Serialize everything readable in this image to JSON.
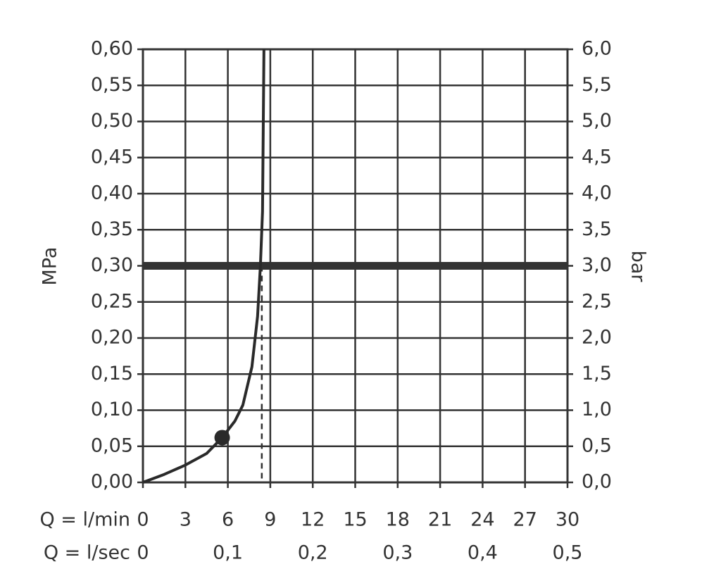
{
  "chart_data": {
    "type": "line",
    "y_label": "MPa",
    "y2_label": "bar",
    "x_label": "Q = l/min",
    "x2_label": "Q = l/sec",
    "xlim": [
      0,
      30
    ],
    "xticks": [
      0,
      3,
      6,
      9,
      12,
      15,
      18,
      21,
      24,
      27,
      30
    ],
    "x2lim": [
      0,
      0.5
    ],
    "x2ticks": [
      0,
      {
        "value": 0.1,
        "label": "0,1"
      },
      {
        "value": 0.2,
        "label": "0,2"
      },
      {
        "value": 0.3,
        "label": "0,3"
      },
      {
        "value": 0.4,
        "label": "0,4"
      },
      {
        "value": 0.5,
        "label": "0,5"
      }
    ],
    "ylim": [
      0,
      0.6
    ],
    "yticks": [
      {
        "value": 0,
        "label": "0,00"
      },
      {
        "value": 0.05,
        "label": "0,05"
      },
      {
        "value": 0.1,
        "label": "0,10"
      },
      {
        "value": 0.15,
        "label": "0,15"
      },
      {
        "value": 0.2,
        "label": "0,20"
      },
      {
        "value": 0.25,
        "label": "0,25"
      },
      {
        "value": 0.3,
        "label": "0,30"
      },
      {
        "value": 0.35,
        "label": "0,35"
      },
      {
        "value": 0.4,
        "label": "0,40"
      },
      {
        "value": 0.45,
        "label": "0,45"
      },
      {
        "value": 0.5,
        "label": "0,50"
      },
      {
        "value": 0.55,
        "label": "0,55"
      },
      {
        "value": 0.6,
        "label": "0,60"
      }
    ],
    "y2lim": [
      0,
      6
    ],
    "y2ticks": [
      {
        "value": 0,
        "label": "0,0"
      },
      {
        "value": 0.5,
        "label": "0,5"
      },
      {
        "value": 1,
        "label": "1,0"
      },
      {
        "value": 1.5,
        "label": "1,5"
      },
      {
        "value": 2,
        "label": "2,0"
      },
      {
        "value": 2.5,
        "label": "2,5"
      },
      {
        "value": 3,
        "label": "3,0"
      },
      {
        "value": 3.5,
        "label": "3,5"
      },
      {
        "value": 4,
        "label": "4,0"
      },
      {
        "value": 4.5,
        "label": "4,5"
      },
      {
        "value": 5,
        "label": "5,0"
      },
      {
        "value": 5.5,
        "label": "5,5"
      },
      {
        "value": 6,
        "label": "6,0"
      }
    ],
    "grid": true,
    "series": [
      {
        "color": "#2a2a2a",
        "x": [
          0,
          1.5,
          3,
          4.5,
          5.6,
          6.5,
          7.06,
          7.7,
          8.1,
          8.3,
          8.45,
          8.55
        ],
        "values": [
          0,
          0.011,
          0.024,
          0.04,
          0.062,
          0.085,
          0.107,
          0.16,
          0.23,
          0.3,
          0.375,
          0.6
        ]
      }
    ],
    "marker": {
      "x": 5.6,
      "y": 0.062
    },
    "reference_y": 0.3,
    "reference_x": 8.4
  }
}
